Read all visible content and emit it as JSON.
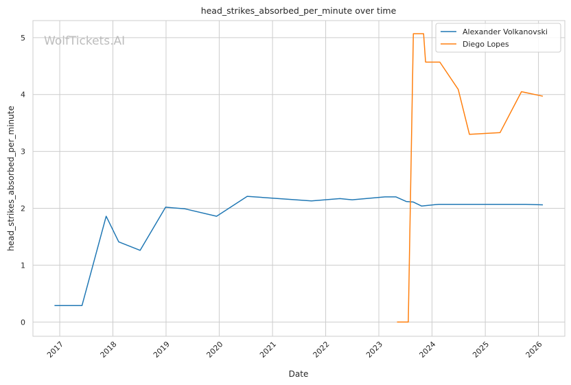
{
  "chart_data": {
    "type": "line",
    "title": "head_strikes_absorbed_per_minute over time",
    "xlabel": "Date",
    "ylabel": "head_strikes_absorbed_per_minute",
    "xlim": [
      "2016-07-01",
      "2026-07-01"
    ],
    "ylim": [
      -0.25,
      5.3
    ],
    "x_ticks": [
      "2017",
      "2018",
      "2019",
      "2020",
      "2021",
      "2022",
      "2023",
      "2024",
      "2025",
      "2026"
    ],
    "y_ticks": [
      0,
      1,
      2,
      3,
      4,
      5
    ],
    "grid": true,
    "legend_position": "top-right",
    "watermark": "WolfTickets.AI",
    "series": [
      {
        "name": "Alexander Volkanovski",
        "color": "#1f77b4",
        "points": [
          {
            "x": "2016-11-26",
            "y": 0.29
          },
          {
            "x": "2017-06-03",
            "y": 0.29
          },
          {
            "x": "2017-11-16",
            "y": 1.86
          },
          {
            "x": "2018-02-10",
            "y": 1.41
          },
          {
            "x": "2018-07-07",
            "y": 1.26
          },
          {
            "x": "2018-12-29",
            "y": 2.02
          },
          {
            "x": "2019-05-11",
            "y": 1.99
          },
          {
            "x": "2019-12-14",
            "y": 1.86
          },
          {
            "x": "2020-07-11",
            "y": 2.21
          },
          {
            "x": "2021-09-25",
            "y": 2.13
          },
          {
            "x": "2022-04-09",
            "y": 2.17
          },
          {
            "x": "2022-07-02",
            "y": 2.15
          },
          {
            "x": "2023-02-12",
            "y": 2.2
          },
          {
            "x": "2023-04-29",
            "y": 2.2
          },
          {
            "x": "2023-07-08",
            "y": 2.12
          },
          {
            "x": "2023-08-26",
            "y": 2.11
          },
          {
            "x": "2023-10-21",
            "y": 2.04
          },
          {
            "x": "2024-02-17",
            "y": 2.07
          },
          {
            "x": "2025-04-12",
            "y": 2.07
          },
          {
            "x": "2025-10-04",
            "y": 2.07
          },
          {
            "x": "2026-01-31",
            "y": 2.06
          }
        ]
      },
      {
        "name": "Diego Lopes",
        "color": "#ff7f0e",
        "points": [
          {
            "x": "2023-05-06",
            "y": 0.0
          },
          {
            "x": "2023-07-22",
            "y": 0.0
          },
          {
            "x": "2023-08-26",
            "y": 5.07
          },
          {
            "x": "2023-11-04",
            "y": 5.07
          },
          {
            "x": "2023-11-18",
            "y": 4.57
          },
          {
            "x": "2024-02-24",
            "y": 4.57
          },
          {
            "x": "2024-06-29",
            "y": 4.09
          },
          {
            "x": "2024-09-14",
            "y": 3.3
          },
          {
            "x": "2025-04-12",
            "y": 3.33
          },
          {
            "x": "2025-09-06",
            "y": 4.05
          },
          {
            "x": "2026-01-31",
            "y": 3.97
          }
        ]
      }
    ]
  }
}
